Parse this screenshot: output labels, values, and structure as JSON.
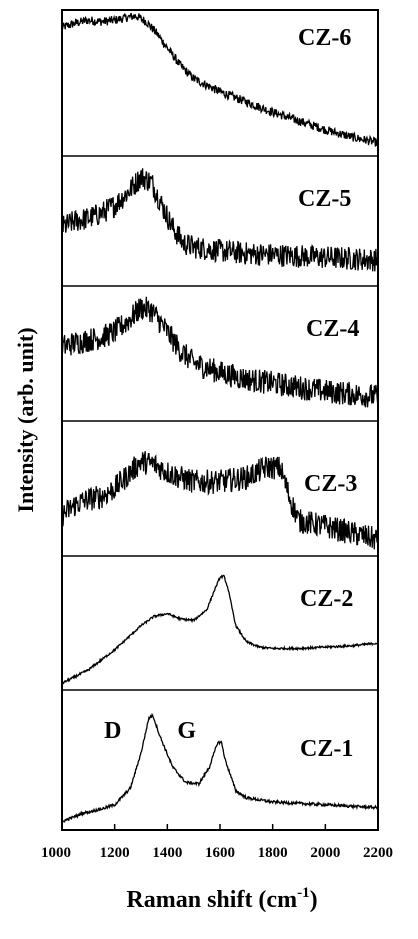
{
  "chart_data": {
    "type": "line",
    "xlabel": "Raman shift (cm",
    "xlabel_sup": "-1",
    "xlabel_close": ")",
    "ylabel": "Intensity (arb. unit)",
    "xlim": [
      1000,
      2200
    ],
    "x_ticks": [
      "1000",
      "1200",
      "1400",
      "1600",
      "1800",
      "2000",
      "2200"
    ],
    "noise_colors": {
      "line": "#000000"
    },
    "peak_labels": [
      {
        "panel": "CZ-1",
        "text": "D",
        "x": 1345
      },
      {
        "panel": "CZ-1",
        "text": "G",
        "x": 1595
      }
    ],
    "series": [
      {
        "name": "CZ-6",
        "noise": 0.03,
        "points": [
          [
            1000,
            0.88
          ],
          [
            1050,
            0.91
          ],
          [
            1100,
            0.93
          ],
          [
            1150,
            0.92
          ],
          [
            1200,
            0.93
          ],
          [
            1250,
            0.95
          ],
          [
            1280,
            0.96
          ],
          [
            1320,
            0.92
          ],
          [
            1360,
            0.84
          ],
          [
            1400,
            0.74
          ],
          [
            1450,
            0.62
          ],
          [
            1500,
            0.53
          ],
          [
            1600,
            0.44
          ],
          [
            1700,
            0.37
          ],
          [
            1800,
            0.3
          ],
          [
            1900,
            0.24
          ],
          [
            2000,
            0.18
          ],
          [
            2100,
            0.13
          ],
          [
            2200,
            0.09
          ]
        ]
      },
      {
        "name": "CZ-5",
        "noise": 0.09,
        "points": [
          [
            1000,
            0.45
          ],
          [
            1050,
            0.5
          ],
          [
            1100,
            0.52
          ],
          [
            1150,
            0.56
          ],
          [
            1200,
            0.62
          ],
          [
            1250,
            0.72
          ],
          [
            1300,
            0.84
          ],
          [
            1340,
            0.8
          ],
          [
            1380,
            0.62
          ],
          [
            1420,
            0.45
          ],
          [
            1460,
            0.33
          ],
          [
            1500,
            0.3
          ],
          [
            1600,
            0.27
          ],
          [
            1700,
            0.25
          ],
          [
            1800,
            0.24
          ],
          [
            1900,
            0.23
          ],
          [
            2000,
            0.22
          ],
          [
            2100,
            0.21
          ],
          [
            2200,
            0.2
          ]
        ]
      },
      {
        "name": "CZ-4",
        "noise": 0.09,
        "points": [
          [
            1000,
            0.55
          ],
          [
            1050,
            0.58
          ],
          [
            1100,
            0.6
          ],
          [
            1150,
            0.62
          ],
          [
            1200,
            0.66
          ],
          [
            1250,
            0.74
          ],
          [
            1300,
            0.84
          ],
          [
            1340,
            0.82
          ],
          [
            1400,
            0.66
          ],
          [
            1450,
            0.52
          ],
          [
            1500,
            0.43
          ],
          [
            1600,
            0.36
          ],
          [
            1700,
            0.31
          ],
          [
            1800,
            0.28
          ],
          [
            1900,
            0.25
          ],
          [
            2000,
            0.22
          ],
          [
            2100,
            0.2
          ],
          [
            2200,
            0.18
          ]
        ]
      },
      {
        "name": "CZ-3",
        "noise": 0.09,
        "points": [
          [
            1000,
            0.3
          ],
          [
            1050,
            0.38
          ],
          [
            1100,
            0.42
          ],
          [
            1150,
            0.44
          ],
          [
            1200,
            0.5
          ],
          [
            1250,
            0.6
          ],
          [
            1300,
            0.7
          ],
          [
            1350,
            0.68
          ],
          [
            1400,
            0.62
          ],
          [
            1450,
            0.58
          ],
          [
            1500,
            0.55
          ],
          [
            1600,
            0.55
          ],
          [
            1700,
            0.58
          ],
          [
            1780,
            0.66
          ],
          [
            1830,
            0.65
          ],
          [
            1870,
            0.4
          ],
          [
            1900,
            0.26
          ],
          [
            2000,
            0.22
          ],
          [
            2100,
            0.17
          ],
          [
            2200,
            0.12
          ]
        ]
      },
      {
        "name": "CZ-2",
        "noise": 0.008,
        "points": [
          [
            1000,
            0.05
          ],
          [
            1100,
            0.15
          ],
          [
            1200,
            0.3
          ],
          [
            1300,
            0.48
          ],
          [
            1350,
            0.55
          ],
          [
            1400,
            0.57
          ],
          [
            1450,
            0.53
          ],
          [
            1500,
            0.52
          ],
          [
            1550,
            0.6
          ],
          [
            1580,
            0.75
          ],
          [
            1600,
            0.84
          ],
          [
            1615,
            0.85
          ],
          [
            1630,
            0.76
          ],
          [
            1660,
            0.48
          ],
          [
            1700,
            0.36
          ],
          [
            1750,
            0.32
          ],
          [
            1800,
            0.31
          ],
          [
            1900,
            0.31
          ],
          [
            2000,
            0.32
          ],
          [
            2100,
            0.33
          ],
          [
            2200,
            0.35
          ]
        ]
      },
      {
        "name": "CZ-1",
        "noise": 0.01,
        "points": [
          [
            1000,
            0.06
          ],
          [
            1080,
            0.12
          ],
          [
            1150,
            0.15
          ],
          [
            1200,
            0.18
          ],
          [
            1260,
            0.3
          ],
          [
            1300,
            0.55
          ],
          [
            1330,
            0.8
          ],
          [
            1345,
            0.82
          ],
          [
            1370,
            0.68
          ],
          [
            1420,
            0.45
          ],
          [
            1470,
            0.34
          ],
          [
            1520,
            0.33
          ],
          [
            1560,
            0.45
          ],
          [
            1590,
            0.62
          ],
          [
            1605,
            0.63
          ],
          [
            1620,
            0.5
          ],
          [
            1660,
            0.28
          ],
          [
            1700,
            0.23
          ],
          [
            1800,
            0.2
          ],
          [
            1900,
            0.19
          ],
          [
            2000,
            0.18
          ],
          [
            2100,
            0.17
          ],
          [
            2200,
            0.16
          ]
        ]
      }
    ]
  }
}
